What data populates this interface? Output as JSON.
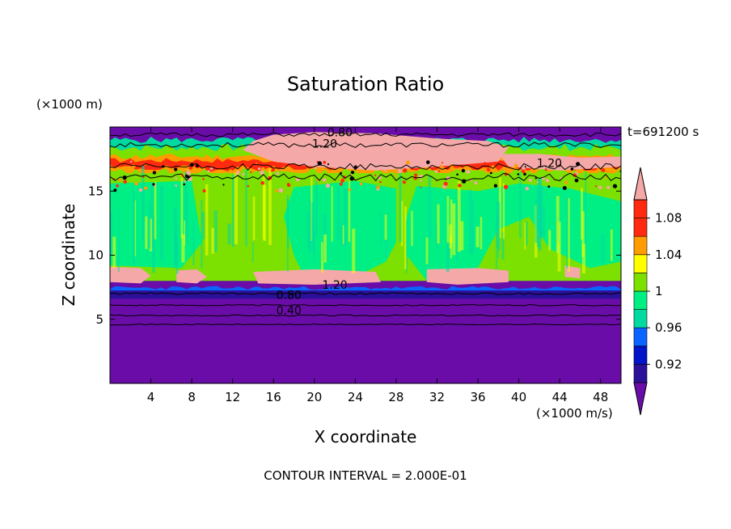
{
  "chart_data": {
    "type": "heatmap",
    "title": "Saturation Ratio",
    "xlabel": "X coordinate",
    "ylabel": "Z coordinate",
    "x_unit": "(×1000 m/s)",
    "y_unit": "(×1000 m)",
    "time_label": "t=691200 s",
    "footer": "CONTOUR INTERVAL = 2.000E-01",
    "xlim": [
      0,
      50
    ],
    "ylim": [
      0,
      20
    ],
    "x_ticks": [
      4,
      8,
      12,
      16,
      20,
      24,
      28,
      32,
      36,
      40,
      44,
      48
    ],
    "y_ticks": [
      5,
      10,
      15
    ],
    "colorbar": {
      "levels": [
        0.9,
        0.92,
        0.94,
        0.96,
        0.98,
        1.0,
        1.02,
        1.04,
        1.06,
        1.08,
        1.1
      ],
      "tick_labels": [
        "0.92",
        "0.96",
        "1",
        "1.04",
        "1.08"
      ],
      "tick_values": [
        0.92,
        0.96,
        1.0,
        1.04,
        1.08
      ],
      "colors": [
        "#6a0da8",
        "#2b1099",
        "#0014c8",
        "#0a64ff",
        "#00d9a0",
        "#00ef84",
        "#7ce000",
        "#ffff00",
        "#ff9c00",
        "#ff2a10",
        "#ff2a10",
        "#f4a8a8"
      ],
      "extend": "both"
    },
    "contour_labels": [
      {
        "text": "0.80",
        "x": 22.5,
        "y": 19.6
      },
      {
        "text": "1.20",
        "x": 21.0,
        "y": 18.7
      },
      {
        "text": "1.20",
        "x": 43.0,
        "y": 17.2
      },
      {
        "text": "1.20",
        "x": 22.0,
        "y": 7.7
      },
      {
        "text": "0.80",
        "x": 17.5,
        "y": 6.9
      },
      {
        "text": "0.40",
        "x": 17.5,
        "y": 5.7
      }
    ]
  }
}
